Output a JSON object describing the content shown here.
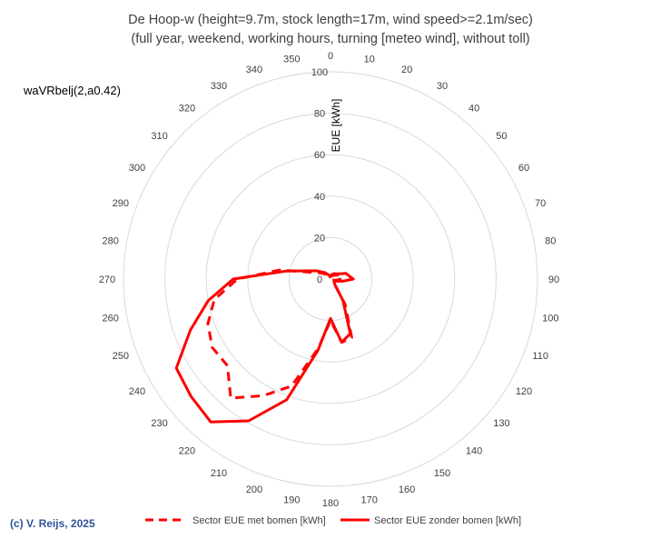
{
  "chart_data": {
    "type": "radar",
    "title_line1": "De Hoop-w  (height=9.7m, stock length=17m, wind speed>=2.1m/sec)",
    "title_line2": "(full year, weekend,  working hours, turning [meteo wind], without toll)",
    "code_label": "waVRbelj(2,a0.42)",
    "copyright": "(c) V. Reijs, 2025",
    "radial_axis_title": "EUE [kWh]",
    "radial_range": [
      0,
      100
    ],
    "radial_ticks": [
      "0",
      "20",
      "40",
      "60",
      "80",
      "100"
    ],
    "angle_labels": [
      "0",
      "10",
      "20",
      "30",
      "40",
      "50",
      "60",
      "70",
      "80",
      "90",
      "100",
      "110",
      "120",
      "130",
      "140",
      "150",
      "160",
      "170",
      "180",
      "190",
      "200",
      "210",
      "220",
      "230",
      "240",
      "250",
      "260",
      "270",
      "280",
      "290",
      "300",
      "310",
      "320",
      "330",
      "340",
      "350"
    ],
    "series": [
      {
        "name": "Sector EUE met bomen [kWh]",
        "style": "dashed",
        "color": "#ff0000",
        "points": [
          [
            0,
            1
          ],
          [
            30,
            2
          ],
          [
            60,
            4
          ],
          [
            80,
            6
          ],
          [
            90,
            5
          ],
          [
            100,
            3
          ],
          [
            120,
            1
          ],
          [
            150,
            14
          ],
          [
            160,
            30
          ],
          [
            170,
            31
          ],
          [
            180,
            20
          ],
          [
            190,
            34
          ],
          [
            200,
            55
          ],
          [
            210,
            65
          ],
          [
            220,
            75
          ],
          [
            230,
            65
          ],
          [
            240,
            66
          ],
          [
            250,
            63
          ],
          [
            260,
            57
          ],
          [
            270,
            45
          ],
          [
            280,
            25
          ],
          [
            300,
            6
          ],
          [
            320,
            3
          ],
          [
            340,
            2
          ],
          [
            350,
            1
          ],
          [
            360,
            1
          ]
        ]
      },
      {
        "name": "Sector EUE zonder bomen [kWh]",
        "style": "solid",
        "color": "#ff0000",
        "points": [
          [
            0,
            1
          ],
          [
            10,
            2
          ],
          [
            30,
            3
          ],
          [
            60,
            5
          ],
          [
            70,
            8
          ],
          [
            80,
            9
          ],
          [
            90,
            11
          ],
          [
            100,
            6
          ],
          [
            120,
            2
          ],
          [
            140,
            3
          ],
          [
            150,
            12
          ],
          [
            160,
            28
          ],
          [
            170,
            31
          ],
          [
            180,
            19
          ],
          [
            190,
            35
          ],
          [
            200,
            62
          ],
          [
            210,
            79
          ],
          [
            220,
            90
          ],
          [
            230,
            88
          ],
          [
            240,
            86
          ],
          [
            250,
            72
          ],
          [
            260,
            60
          ],
          [
            270,
            47
          ],
          [
            280,
            22
          ],
          [
            300,
            8
          ],
          [
            320,
            4
          ],
          [
            340,
            2
          ],
          [
            350,
            1
          ],
          [
            360,
            1
          ]
        ]
      }
    ]
  }
}
